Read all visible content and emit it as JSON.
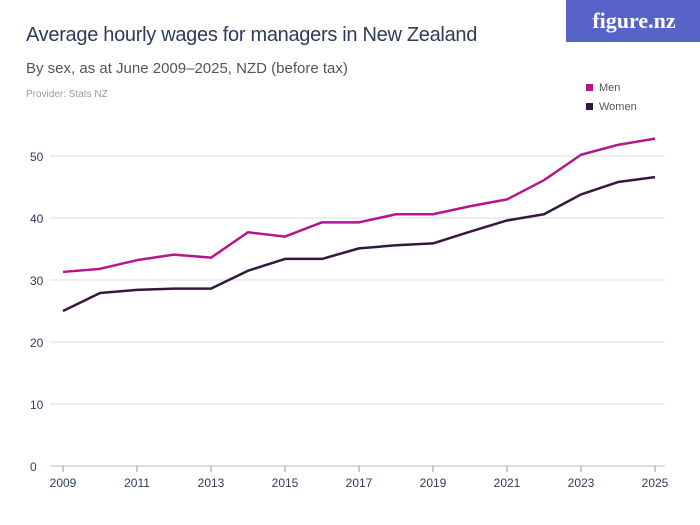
{
  "header": {
    "title": "Average hourly wages for managers in New Zealand",
    "subtitle": "By sex, as at June 2009–2025, NZD (before tax)",
    "provider": "Provider: Stats NZ",
    "logo": "figure.nz"
  },
  "chart_data": {
    "type": "line",
    "title": "Average hourly wages for managers in New Zealand",
    "subtitle": "By sex, as at June 2009–2025, NZD (before tax)",
    "x": [
      2009,
      2010,
      2011,
      2012,
      2013,
      2014,
      2015,
      2016,
      2017,
      2018,
      2019,
      2020,
      2021,
      2022,
      2023,
      2024,
      2025
    ],
    "xticks": [
      "2009",
      "2011",
      "2013",
      "2015",
      "2017",
      "2019",
      "2021",
      "2023",
      "2025"
    ],
    "yticks": [
      "0",
      "10",
      "20",
      "30",
      "40",
      "50"
    ],
    "ylim": [
      0,
      50
    ],
    "grid": true,
    "legend_position": "top-right",
    "series": [
      {
        "name": "Men",
        "color": "#b5168d",
        "values": [
          31.3,
          31.8,
          33.2,
          34.1,
          33.6,
          37.7,
          37.0,
          39.3,
          39.3,
          40.6,
          40.6,
          41.9,
          43.0,
          46.1,
          50.2,
          51.8,
          52.8
        ]
      },
      {
        "name": "Women",
        "color": "#33193f",
        "values": [
          25.0,
          27.9,
          28.4,
          28.6,
          28.6,
          31.5,
          33.4,
          33.4,
          35.1,
          35.6,
          35.9,
          37.8,
          39.6,
          40.6,
          43.8,
          45.8,
          46.6
        ]
      }
    ]
  }
}
